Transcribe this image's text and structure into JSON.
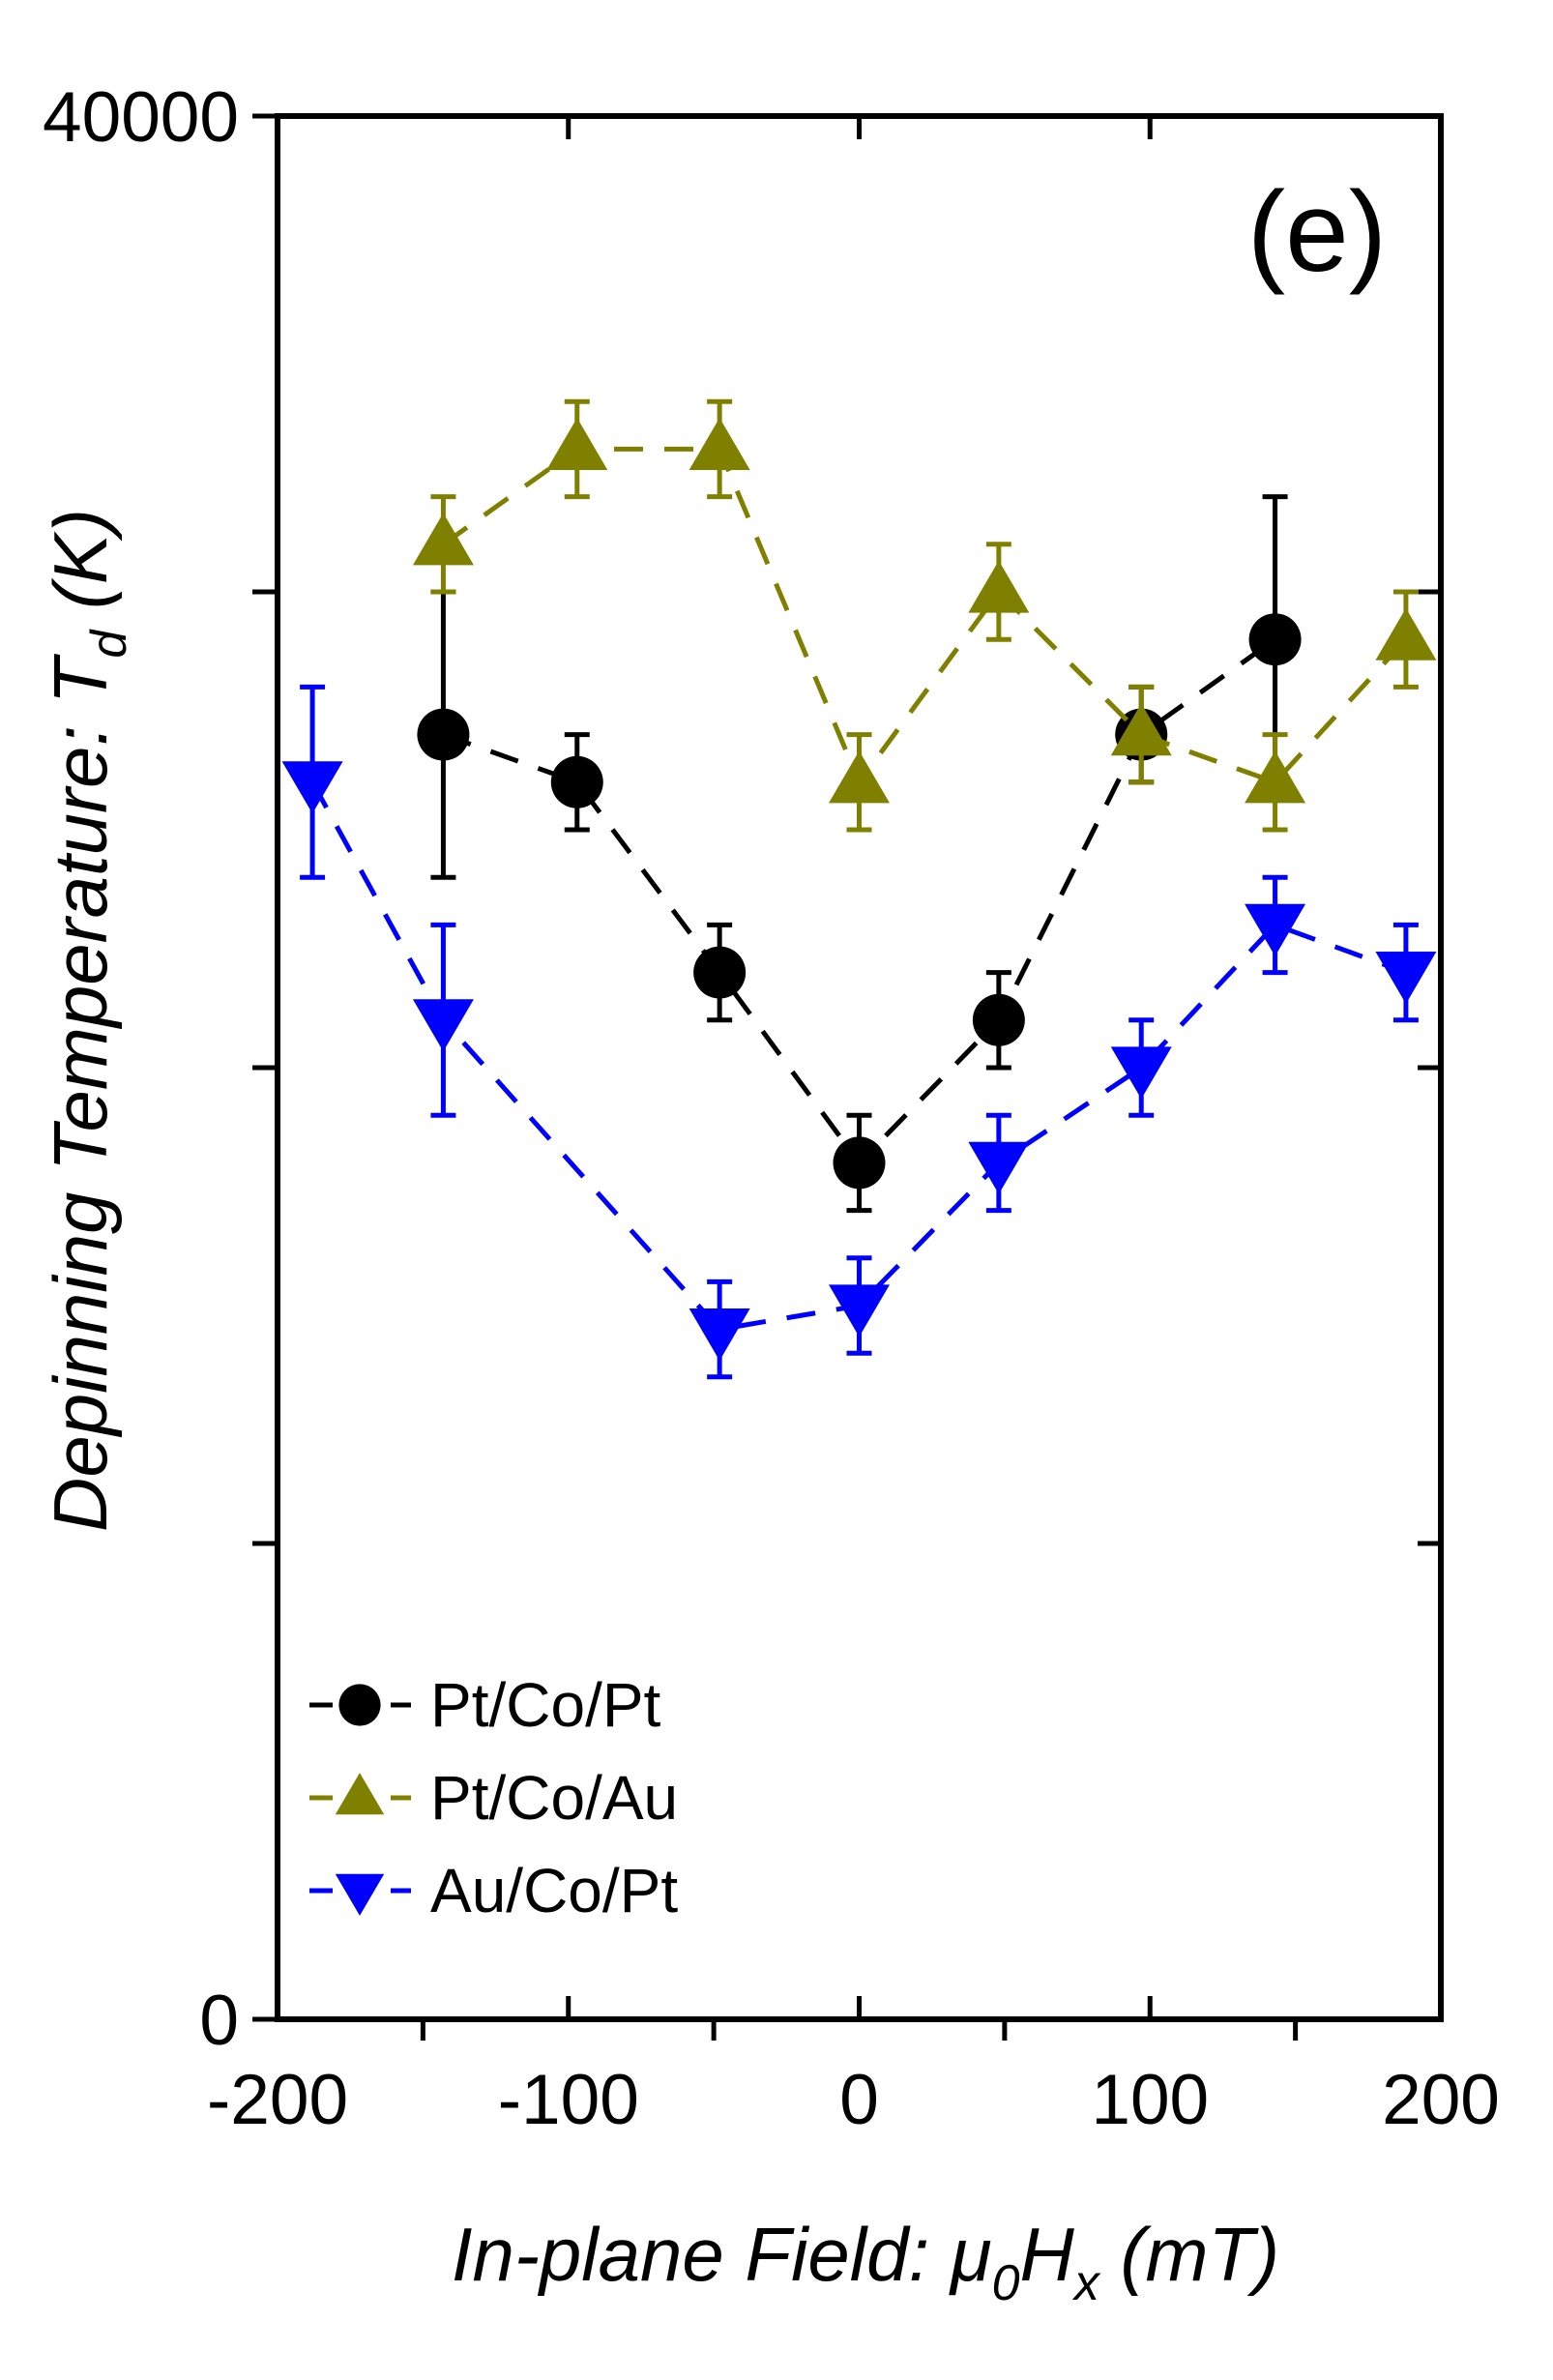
{
  "chart_data": {
    "type": "line",
    "panel_label": "(e)",
    "xlabel_parts": {
      "main": "In-plane Field: μ",
      "sub1": "0",
      "mid": "H",
      "sub2": "x",
      "tail": " (mT)"
    },
    "ylabel_parts": {
      "main": "Depinning Temperature: T",
      "sub": "d",
      "tail": " (K)"
    },
    "xlim": [
      -200,
      200
    ],
    "ylim": [
      0,
      40000
    ],
    "x_major_ticks": [
      -200,
      -100,
      0,
      100,
      200
    ],
    "x_tick_labels": [
      "-200",
      "-100",
      "0",
      "100",
      "200"
    ],
    "x_minor_ticks": [
      -150,
      -50,
      50,
      150
    ],
    "y_major_ticks": [
      0,
      10000,
      20000,
      30000,
      40000
    ],
    "y_tick_labels": [
      "0",
      "",
      "",
      "",
      "40000"
    ],
    "legend_position": "lower-left",
    "series": [
      {
        "name": "Pt/Co/Pt",
        "color": "#000000",
        "marker": "circle",
        "x": [
          -143,
          -97,
          -48,
          0,
          48,
          97,
          143
        ],
        "y": [
          27000,
          26000,
          22000,
          18000,
          21000,
          27000,
          29000
        ],
        "err": [
          3000,
          1000,
          1000,
          1000,
          1000,
          1000,
          3000
        ]
      },
      {
        "name": "Pt/Co/Au",
        "color": "#808000",
        "marker": "triangle-up",
        "x": [
          -143,
          -97,
          -48,
          0,
          48,
          97,
          143,
          188
        ],
        "y": [
          31000,
          33000,
          33000,
          26000,
          30000,
          27000,
          26000,
          29000
        ],
        "err": [
          1000,
          1000,
          1000,
          1000,
          1000,
          1000,
          1000,
          1000
        ]
      },
      {
        "name": "Au/Co/Pt",
        "color": "#0000ff",
        "marker": "triangle-down",
        "x": [
          -188,
          -143,
          -48,
          0,
          48,
          97,
          143,
          188
        ],
        "y": [
          26000,
          21000,
          14500,
          15000,
          18000,
          20000,
          23000,
          22000
        ],
        "err": [
          2000,
          2000,
          1000,
          1000,
          1000,
          1000,
          1000,
          1000
        ]
      }
    ]
  }
}
